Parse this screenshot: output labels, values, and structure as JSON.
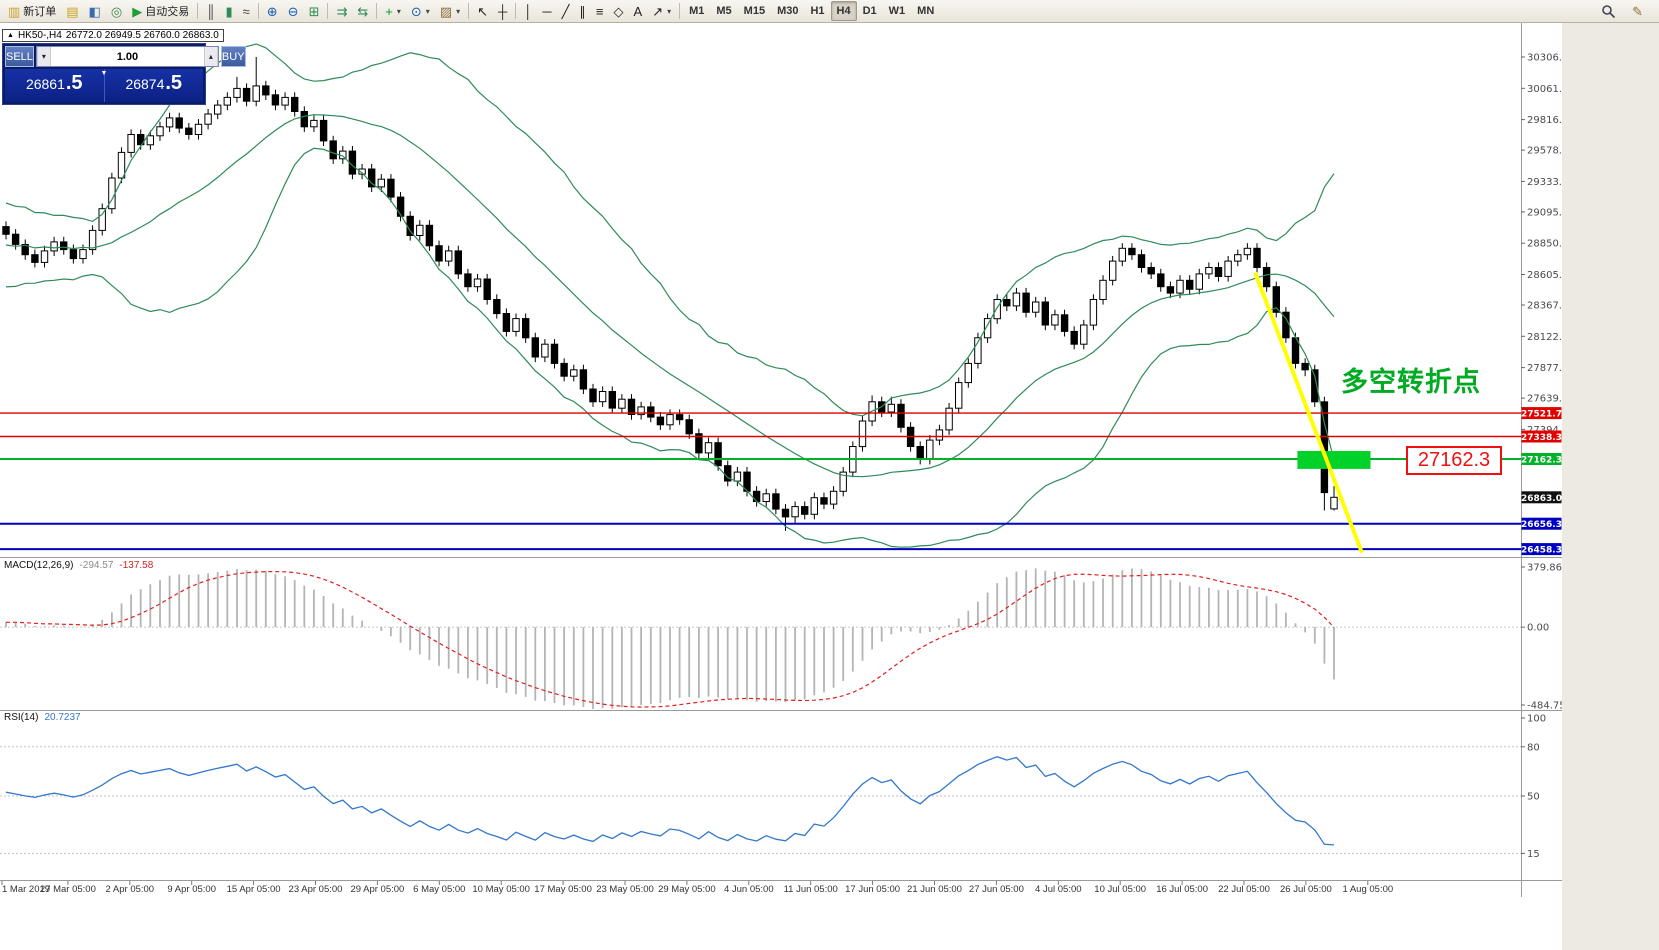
{
  "icons": {
    "window_icon": "▲",
    "spin_down": "▾",
    "spin_up": "▴",
    "tick_down": "▼",
    "dropdown_caret": "▾",
    "pencil": "✎"
  },
  "toolbar": {
    "active_timeframe": "H4",
    "items": [
      {
        "kind": "button",
        "name": "new-order-button",
        "glyph": "▥",
        "color": "#caa02a",
        "label": "新订单"
      },
      {
        "kind": "button",
        "name": "market-watch-button",
        "glyph": "▤",
        "color": "#c8a020"
      },
      {
        "kind": "button",
        "name": "data-window-button",
        "glyph": "◧",
        "color": "#3a6ab0"
      },
      {
        "kind": "button",
        "name": "navigator-button",
        "glyph": "◎",
        "color": "#3a8a50"
      },
      {
        "kind": "button",
        "name": "auto-trading-button",
        "glyph": "▶",
        "color": "#1f9d3a",
        "label": "自动交易"
      },
      {
        "kind": "sep"
      },
      {
        "kind": "button",
        "name": "bar-chart-button",
        "glyph": "║",
        "color": "#444"
      },
      {
        "kind": "button",
        "name": "candlestick-chart-button",
        "glyph": "▮",
        "color": "#2e8b57"
      },
      {
        "kind": "button",
        "name": "line-chart-button",
        "glyph": "≈",
        "color": "#444"
      },
      {
        "kind": "sep"
      },
      {
        "kind": "button",
        "name": "zoom-in-button",
        "glyph": "⊕",
        "color": "#1a5fb4"
      },
      {
        "kind": "button",
        "name": "zoom-out-button",
        "glyph": "⊖",
        "color": "#1a5fb4"
      },
      {
        "kind": "button",
        "name": "tile-windows-button",
        "glyph": "⊞",
        "color": "#2e8b57"
      },
      {
        "kind": "sep"
      },
      {
        "kind": "button",
        "name": "auto-scroll-button",
        "glyph": "⇉",
        "color": "#2e8b57"
      },
      {
        "kind": "button",
        "name": "chart-shift-button",
        "glyph": "⇆",
        "color": "#2e8b57"
      },
      {
        "kind": "sep"
      },
      {
        "kind": "button",
        "name": "indicators-button",
        "glyph": "+",
        "color": "#0a9a2a",
        "caret": true
      },
      {
        "kind": "button",
        "name": "periods-button",
        "glyph": "⊙",
        "color": "#1a5fb4",
        "caret": true
      },
      {
        "kind": "button",
        "name": "templates-button",
        "glyph": "▨",
        "color": "#8a6d3b",
        "caret": true
      },
      {
        "kind": "sep"
      },
      {
        "kind": "button",
        "name": "cursor-button",
        "glyph": "↖",
        "color": "#222"
      },
      {
        "kind": "button",
        "name": "crosshair-button",
        "glyph": "┼",
        "color": "#222"
      },
      {
        "kind": "sep"
      },
      {
        "kind": "button",
        "name": "vertical-line-button",
        "glyph": "│",
        "color": "#222"
      },
      {
        "kind": "button",
        "name": "horizontal-line-button",
        "glyph": "─",
        "color": "#222"
      },
      {
        "kind": "button",
        "name": "trendline-button",
        "glyph": "╱",
        "color": "#222"
      },
      {
        "kind": "button",
        "name": "channel-button",
        "glyph": "∥",
        "color": "#222"
      },
      {
        "kind": "button",
        "name": "fibonacci-button",
        "glyph": "≡",
        "color": "#222"
      },
      {
        "kind": "button",
        "name": "shapes-button",
        "glyph": "◇",
        "color": "#222"
      },
      {
        "kind": "button",
        "name": "text-button",
        "glyph": "A",
        "color": "#222"
      },
      {
        "kind": "button",
        "name": "arrows-button",
        "glyph": "↗",
        "color": "#222",
        "caret": true
      },
      {
        "kind": "sep"
      },
      {
        "kind": "tf",
        "name": "timeframe-m1-button",
        "label": "M1"
      },
      {
        "kind": "tf",
        "name": "timeframe-m5-button",
        "label": "M5"
      },
      {
        "kind": "tf",
        "name": "timeframe-m15-button",
        "label": "M15"
      },
      {
        "kind": "tf",
        "name": "timeframe-m30-button",
        "label": "M30"
      },
      {
        "kind": "tf",
        "name": "timeframe-h1-button",
        "label": "H1"
      },
      {
        "kind": "tf",
        "name": "timeframe-h4-button",
        "label": "H4"
      },
      {
        "kind": "tf",
        "name": "timeframe-d1-button",
        "label": "D1"
      },
      {
        "kind": "tf",
        "name": "timeframe-w1-button",
        "label": "W1"
      },
      {
        "kind": "tf",
        "name": "timeframe-mn-button",
        "label": "MN"
      }
    ]
  },
  "chart_tab": {
    "symbol_timeframe": "HK50-,H4",
    "ohlc": "26772.0 26949.5 26760.0 26863.0"
  },
  "trade_panel": {
    "sell_label": "SELL",
    "buy_label": "BUY",
    "volume": "1.00",
    "sell_price_main": "26861",
    "sell_price_frac": ".5",
    "buy_price_main": "26874",
    "buy_price_frac": ".5"
  },
  "indicators": {
    "macd_name": "MACD(12,26,9)",
    "macd_value": "-294.57",
    "macd_signal": "-137.58",
    "rsi_name": "RSI(14)",
    "rsi_value": "20.7237"
  },
  "annotation": {
    "text": "多空转折点",
    "color": "#00aa22"
  },
  "callout": {
    "text": "27162.3"
  },
  "chart_data": {
    "type": "candlestick",
    "title": "HK50-,H4",
    "main_ylim": [
      26404,
      30517
    ],
    "price_ticks": [
      "30306.0",
      "30061.0",
      "29816.0",
      "29578.0",
      "29333.0",
      "29095.0",
      "28850.0",
      "28605.0",
      "28367.0",
      "28122.0",
      "27877.0",
      "27639.0",
      "27394.0"
    ],
    "current_price": 26863.0,
    "hlines": [
      {
        "price": 27521.7,
        "color": "#e00000",
        "label": "27521.7",
        "width": 1.4
      },
      {
        "price": 27338.3,
        "color": "#e00000",
        "label": "27338.3",
        "width": 1.4
      },
      {
        "price": 27162.3,
        "color": "#00b22a",
        "label": "27162.3",
        "width": 2
      },
      {
        "price": 26656.3,
        "color": "#0000c0",
        "label": "26656.3",
        "width": 2
      },
      {
        "price": 26458.3,
        "color": "#0000c0",
        "label": "26458.3",
        "width": 2
      }
    ],
    "bollinger": {
      "period": 20,
      "deviation": 2,
      "color": "#2e8b57"
    },
    "trend_line": {
      "from_index": 129.8,
      "from_price": 28620,
      "to_index": 140.9,
      "to_price": 26430,
      "color": "#ffff00",
      "width": 4
    },
    "highlight_box": {
      "from_index": 134.2,
      "to_index": 141.8,
      "top_price": 27225,
      "bottom_price": 27085,
      "color": "#00d22a"
    },
    "macd": {
      "params": "12,26,9",
      "axis_ticks": [
        "379.86",
        "0.00",
        "-484.75"
      ],
      "ylim": [
        -484.75,
        379.86
      ],
      "histogram_color": "#b4b4b4",
      "signal_color": "#e02020"
    },
    "rsi": {
      "period": 14,
      "axis_ticks": [
        "100",
        "80",
        "50",
        "15"
      ],
      "levels": [
        80,
        50,
        15
      ],
      "ylim": [
        0,
        100
      ],
      "color": "#3377cc"
    },
    "time_labels": [
      "1 Mar 2019",
      "27 Mar 05:00",
      "2 Apr 05:00",
      "9 Apr 05:00",
      "15 Apr 05:00",
      "23 Apr 05:00",
      "29 Apr 05:00",
      "6 May 05:00",
      "10 May 05:00",
      "17 May 05:00",
      "23 May 05:00",
      "29 May 05:00",
      "4 Jun 05:00",
      "11 Jun 05:00",
      "17 Jun 05:00",
      "21 Jun 05:00",
      "27 Jun 05:00",
      "4 Jul 05:00",
      "10 Jul 05:00",
      "16 Jul 05:00",
      "22 Jul 05:00",
      "26 Jul 05:00",
      "1 Aug 05:00"
    ],
    "candles": [
      [
        28980,
        29020,
        28880,
        28920
      ],
      [
        28920,
        28960,
        28800,
        28840
      ],
      [
        28840,
        28880,
        28720,
        28760
      ],
      [
        28760,
        28800,
        28660,
        28700
      ],
      [
        28700,
        28830,
        28660,
        28790
      ],
      [
        28790,
        28900,
        28750,
        28860
      ],
      [
        28860,
        28900,
        28760,
        28800
      ],
      [
        28800,
        28840,
        28690,
        28730
      ],
      [
        28730,
        28840,
        28690,
        28800
      ],
      [
        28800,
        28990,
        28760,
        28950
      ],
      [
        28950,
        29160,
        28910,
        29120
      ],
      [
        29120,
        29400,
        29080,
        29360
      ],
      [
        29360,
        29600,
        29320,
        29560
      ],
      [
        29560,
        29740,
        29520,
        29700
      ],
      [
        29700,
        29740,
        29580,
        29620
      ],
      [
        29620,
        29730,
        29580,
        29690
      ],
      [
        29690,
        29800,
        29650,
        29760
      ],
      [
        29760,
        29870,
        29720,
        29830
      ],
      [
        29830,
        29870,
        29710,
        29750
      ],
      [
        29750,
        29790,
        29660,
        29700
      ],
      [
        29700,
        29820,
        29660,
        29780
      ],
      [
        29780,
        29900,
        29740,
        29860
      ],
      [
        29860,
        29970,
        29820,
        29930
      ],
      [
        29930,
        30030,
        29890,
        29990
      ],
      [
        29990,
        30150,
        29950,
        30060
      ],
      [
        30060,
        30100,
        29920,
        29960
      ],
      [
        29960,
        30306,
        29920,
        30080
      ],
      [
        30080,
        30120,
        29970,
        30010
      ],
      [
        30010,
        30050,
        29890,
        29930
      ],
      [
        29930,
        30030,
        29890,
        29990
      ],
      [
        29990,
        30030,
        29840,
        29880
      ],
      [
        29880,
        29920,
        29720,
        29760
      ],
      [
        29760,
        29850,
        29720,
        29810
      ],
      [
        29810,
        29850,
        29610,
        29650
      ],
      [
        29650,
        29690,
        29470,
        29510
      ],
      [
        29510,
        29610,
        29470,
        29570
      ],
      [
        29570,
        29610,
        29350,
        29390
      ],
      [
        29390,
        29470,
        29350,
        29430
      ],
      [
        29430,
        29470,
        29250,
        29290
      ],
      [
        29290,
        29390,
        29250,
        29350
      ],
      [
        29350,
        29390,
        29170,
        29210
      ],
      [
        29210,
        29250,
        29020,
        29060
      ],
      [
        29060,
        29100,
        28870,
        28910
      ],
      [
        28910,
        29030,
        28870,
        28990
      ],
      [
        28990,
        29030,
        28790,
        28830
      ],
      [
        28830,
        28870,
        28670,
        28710
      ],
      [
        28710,
        28830,
        28670,
        28790
      ],
      [
        28790,
        28830,
        28570,
        28610
      ],
      [
        28610,
        28650,
        28470,
        28510
      ],
      [
        28510,
        28610,
        28470,
        28570
      ],
      [
        28570,
        28610,
        28370,
        28410
      ],
      [
        28410,
        28450,
        28260,
        28300
      ],
      [
        28300,
        28340,
        28120,
        28160
      ],
      [
        28160,
        28300,
        28120,
        28260
      ],
      [
        28260,
        28300,
        28070,
        28110
      ],
      [
        28110,
        28150,
        27920,
        27960
      ],
      [
        27960,
        28100,
        27920,
        28060
      ],
      [
        28060,
        28100,
        27870,
        27910
      ],
      [
        27910,
        27950,
        27770,
        27810
      ],
      [
        27810,
        27900,
        27770,
        27860
      ],
      [
        27860,
        27900,
        27670,
        27710
      ],
      [
        27710,
        27750,
        27570,
        27610
      ],
      [
        27610,
        27730,
        27570,
        27690
      ],
      [
        27690,
        27730,
        27520,
        27560
      ],
      [
        27560,
        27670,
        27520,
        27630
      ],
      [
        27630,
        27670,
        27470,
        27510
      ],
      [
        27510,
        27610,
        27470,
        27570
      ],
      [
        27570,
        27610,
        27450,
        27490
      ],
      [
        27490,
        27530,
        27390,
        27430
      ],
      [
        27430,
        27550,
        27390,
        27510
      ],
      [
        27510,
        27550,
        27430,
        27470
      ],
      [
        27470,
        27510,
        27320,
        27360
      ],
      [
        27360,
        27400,
        27170,
        27210
      ],
      [
        27210,
        27330,
        27170,
        27290
      ],
      [
        27290,
        27330,
        27070,
        27110
      ],
      [
        27110,
        27150,
        26950,
        26990
      ],
      [
        26990,
        27100,
        26950,
        27060
      ],
      [
        27060,
        27100,
        26870,
        26910
      ],
      [
        26910,
        26950,
        26790,
        26830
      ],
      [
        26830,
        26930,
        26790,
        26890
      ],
      [
        26890,
        26930,
        26730,
        26770
      ],
      [
        26770,
        26810,
        26600,
        26710
      ],
      [
        26710,
        26830,
        26650,
        26790
      ],
      [
        26790,
        26830,
        26690,
        26730
      ],
      [
        26730,
        26900,
        26690,
        26860
      ],
      [
        26860,
        26900,
        26770,
        26810
      ],
      [
        26810,
        26950,
        26770,
        26910
      ],
      [
        26910,
        27100,
        26870,
        27060
      ],
      [
        27060,
        27300,
        27020,
        27260
      ],
      [
        27260,
        27500,
        27220,
        27460
      ],
      [
        27460,
        27660,
        27420,
        27610
      ],
      [
        27610,
        27650,
        27490,
        27530
      ],
      [
        27530,
        27650,
        27490,
        27590
      ],
      [
        27590,
        27630,
        27370,
        27410
      ],
      [
        27410,
        27450,
        27220,
        27260
      ],
      [
        27260,
        27300,
        27120,
        27160
      ],
      [
        27160,
        27350,
        27120,
        27310
      ],
      [
        27310,
        27430,
        27270,
        27390
      ],
      [
        27390,
        27600,
        27350,
        27560
      ],
      [
        27560,
        27800,
        27520,
        27760
      ],
      [
        27760,
        27950,
        27720,
        27910
      ],
      [
        27910,
        28150,
        27870,
        28110
      ],
      [
        28110,
        28300,
        28070,
        28260
      ],
      [
        28260,
        28450,
        28220,
        28410
      ],
      [
        28410,
        28450,
        28320,
        28360
      ],
      [
        28360,
        28500,
        28320,
        28460
      ],
      [
        28460,
        28500,
        28270,
        28310
      ],
      [
        28310,
        28430,
        28270,
        28390
      ],
      [
        28390,
        28430,
        28170,
        28210
      ],
      [
        28210,
        28330,
        28170,
        28290
      ],
      [
        28290,
        28330,
        28120,
        28160
      ],
      [
        28160,
        28200,
        28020,
        28060
      ],
      [
        28060,
        28250,
        28020,
        28210
      ],
      [
        28210,
        28450,
        28170,
        28410
      ],
      [
        28410,
        28600,
        28370,
        28560
      ],
      [
        28560,
        28750,
        28520,
        28710
      ],
      [
        28710,
        28850,
        28670,
        28810
      ],
      [
        28810,
        28850,
        28720,
        28760
      ],
      [
        28760,
        28800,
        28620,
        28660
      ],
      [
        28660,
        28700,
        28570,
        28610
      ],
      [
        28610,
        28650,
        28470,
        28510
      ],
      [
        28510,
        28550,
        28420,
        28460
      ],
      [
        28460,
        28600,
        28420,
        28560
      ],
      [
        28560,
        28600,
        28450,
        28490
      ],
      [
        28490,
        28650,
        28450,
        28610
      ],
      [
        28610,
        28700,
        28570,
        28660
      ],
      [
        28660,
        28700,
        28550,
        28590
      ],
      [
        28590,
        28750,
        28550,
        28710
      ],
      [
        28710,
        28800,
        28670,
        28760
      ],
      [
        28760,
        28850,
        28720,
        28810
      ],
      [
        28810,
        28850,
        28620,
        28660
      ],
      [
        28660,
        28700,
        28470,
        28510
      ],
      [
        28510,
        28550,
        28270,
        28310
      ],
      [
        28310,
        28350,
        28070,
        28110
      ],
      [
        28110,
        28150,
        27870,
        27910
      ],
      [
        27910,
        27950,
        27810,
        27860
      ],
      [
        27860,
        27900,
        27570,
        27610
      ],
      [
        27610,
        27650,
        26760,
        26900
      ],
      [
        26772,
        26949.5,
        26760,
        26863
      ]
    ]
  }
}
